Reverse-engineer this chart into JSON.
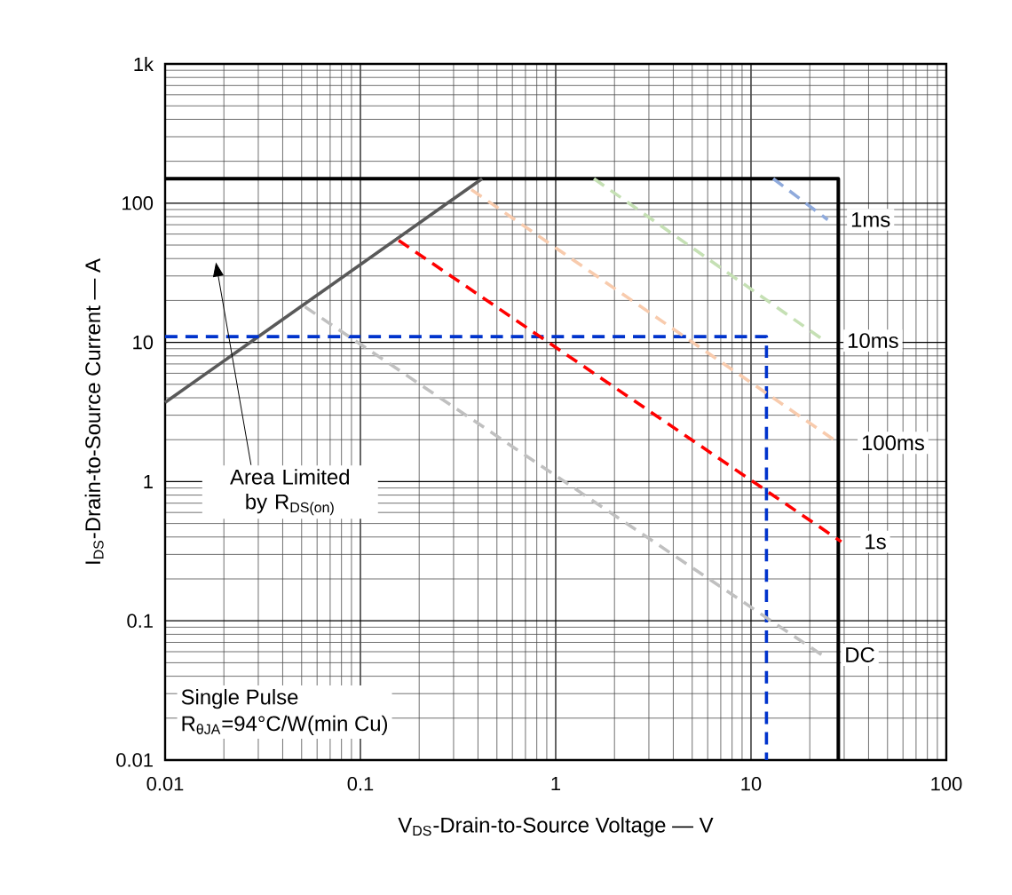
{
  "chart_data": {
    "type": "line",
    "xlabel": "V$_{DS}$-Drain-to-Source Voltage — V",
    "ylabel": "I$_{DS}$-Drain-to-Source Current — A",
    "log": "xy",
    "grid": true,
    "xlim": [
      0.01,
      100
    ],
    "ylim": [
      0.01,
      1000
    ],
    "xticks": [
      0.01,
      0.1,
      1,
      10,
      100
    ],
    "yticks": [
      0.01,
      0.1,
      1,
      10,
      100,
      {
        "value": 1000,
        "label": "1k"
      }
    ],
    "series": [
      {
        "color": "#000000",
        "line_style": "solid",
        "x": [
          0.01,
          28,
          28
        ],
        "values": [
          150,
          150,
          0.01
        ]
      },
      {
        "color": "#595959",
        "line_style": "solid",
        "x": [
          0.01,
          0.42
        ],
        "values": [
          3.7,
          150
        ]
      },
      {
        "color": "#0033cc",
        "line_style": "dashed",
        "x": [
          0.01,
          12,
          12
        ],
        "values": [
          11,
          11,
          0.01
        ]
      },
      {
        "name": "DC",
        "color": "#c0c0c0",
        "line_style": "dashed",
        "x": [
          0.052,
          23
        ],
        "values": [
          18,
          0.057
        ]
      },
      {
        "name": "1s",
        "color": "#ff0000",
        "line_style": "dashed",
        "x": [
          0.157,
          29
        ],
        "values": [
          54,
          0.37
        ]
      },
      {
        "name": "100ms",
        "color": "#f8cbad",
        "line_style": "dashed",
        "x": [
          0.37,
          28
        ],
        "values": [
          125,
          1.9
        ]
      },
      {
        "name": "10ms",
        "color": "#c5e0b4",
        "line_style": "dashed",
        "x": [
          1.57,
          23.7
        ],
        "values": [
          150,
          10.3
        ]
      },
      {
        "name": "1ms",
        "color": "#8faadc",
        "line_style": "dashed",
        "x": [
          13,
          24.7
        ],
        "values": [
          150,
          76
        ]
      }
    ],
    "annotations": [
      "Area Limited by R$_{DS(on)}$",
      "Single Pulse",
      "R$_{θJA}$=94°C/W(min Cu)"
    ]
  }
}
